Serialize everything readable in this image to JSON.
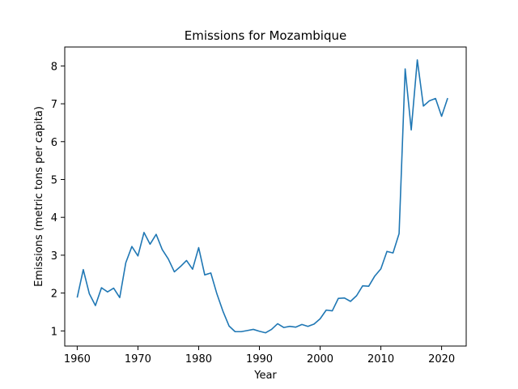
{
  "chart_data": {
    "type": "line",
    "title": "Emissions for Mozambique",
    "xlabel": "Year",
    "ylabel": "Emissions (metric tons per capita)",
    "xlim": [
      1957.95,
      2024.05
    ],
    "ylim": [
      0.6,
      8.5
    ],
    "xticks": [
      1960,
      1970,
      1980,
      1990,
      2000,
      2010,
      2020
    ],
    "yticks": [
      1,
      2,
      3,
      4,
      5,
      6,
      7,
      8
    ],
    "grid": false,
    "color": "#1f77b4",
    "series": [
      {
        "x": [
          1960,
          1961,
          1962,
          1963,
          1964,
          1965,
          1966,
          1967,
          1968,
          1969,
          1970,
          1971,
          1972,
          1973,
          1974,
          1975,
          1976,
          1977,
          1978,
          1979,
          1980,
          1981,
          1982,
          1983,
          1984,
          1985,
          1986,
          1987,
          1988,
          1989,
          1990,
          1991,
          1992,
          1993,
          1994,
          1995,
          1996,
          1997,
          1998,
          1999,
          2000,
          2001,
          2002,
          2003,
          2004,
          2005,
          2006,
          2007,
          2008,
          2009,
          2010,
          2011,
          2012,
          2013,
          2014,
          2015,
          2016,
          2017,
          2018,
          2019,
          2020,
          2021
        ],
        "values": [
          1.88,
          2.62,
          1.98,
          1.67,
          2.14,
          2.03,
          2.13,
          1.88,
          2.8,
          3.23,
          2.98,
          3.6,
          3.29,
          3.55,
          3.15,
          2.9,
          2.56,
          2.7,
          2.86,
          2.63,
          3.2,
          2.48,
          2.53,
          1.98,
          1.52,
          1.13,
          0.98,
          0.98,
          1.01,
          1.04,
          0.99,
          0.95,
          1.04,
          1.19,
          1.09,
          1.12,
          1.1,
          1.17,
          1.12,
          1.18,
          1.32,
          1.55,
          1.53,
          1.86,
          1.87,
          1.78,
          1.93,
          2.19,
          2.18,
          2.45,
          2.64,
          3.1,
          3.06,
          3.57,
          7.92,
          6.31,
          8.16,
          6.94,
          7.08,
          7.14,
          6.67,
          7.15
        ]
      }
    ]
  }
}
